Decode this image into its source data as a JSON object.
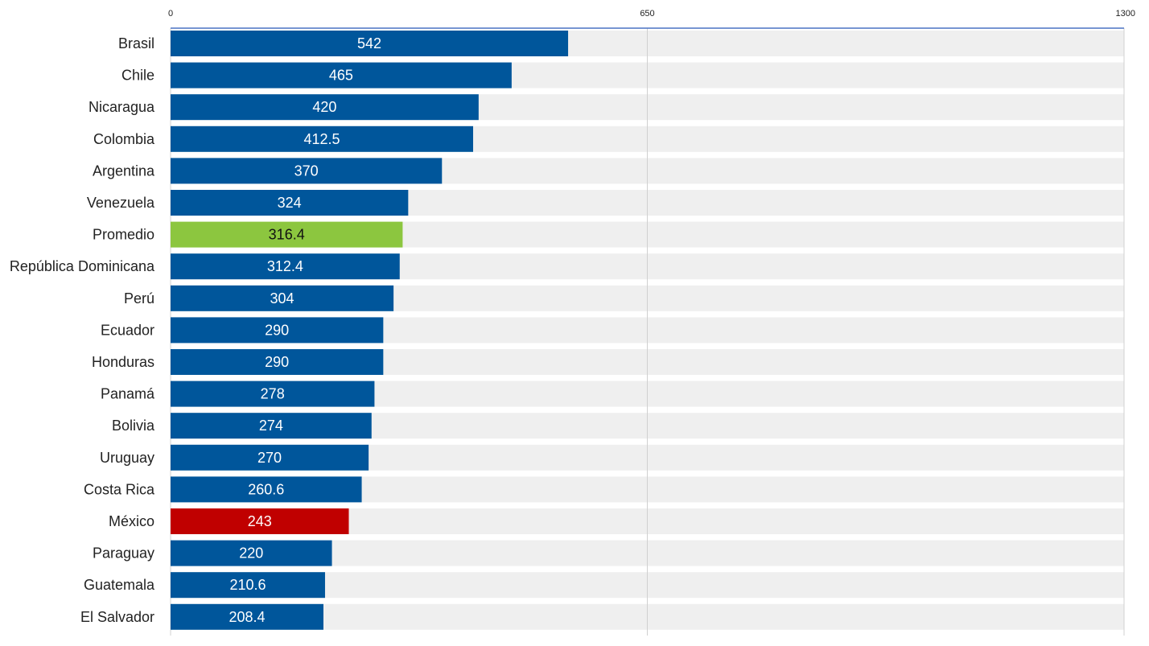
{
  "chart_data": {
    "type": "bar",
    "orientation": "horizontal",
    "title": "",
    "xlabel": "",
    "ylabel": "",
    "xlim": [
      0,
      1300
    ],
    "ticks": [
      0,
      650,
      1300
    ],
    "tick_labels": [
      "0",
      "650",
      "1300"
    ],
    "grid": true,
    "legend": "none",
    "categories": [
      "Brasil",
      "Chile",
      "Nicaragua",
      "Colombia",
      "Argentina",
      "Venezuela",
      "Promedio",
      "República Dominicana",
      "Perú",
      "Ecuador",
      "Honduras",
      "Panamá",
      "Bolivia",
      "Uruguay",
      "Costa Rica",
      "México",
      "Paraguay",
      "Guatemala",
      "El Salvador"
    ],
    "values": [
      542,
      465,
      420,
      412.5,
      370,
      324,
      316.4,
      312.4,
      304,
      290,
      290,
      278,
      274,
      270,
      260.6,
      243,
      220,
      210.6,
      208.4
    ],
    "value_labels": [
      "542",
      "465",
      "420",
      "412.5",
      "370",
      "324",
      "316.4",
      "312.4",
      "304",
      "290",
      "290",
      "278",
      "274",
      "270",
      "260.6",
      "243",
      "220",
      "210.6",
      "208.4"
    ],
    "highlights": {
      "Promedio": "#8cc63f",
      "México": "#c00000"
    },
    "colors": {
      "default_bar": "#00569b",
      "track": "#efefef",
      "axis_line": "#4a72c4",
      "grid": "#d0d0d0",
      "label_dark": "#111111",
      "label_light": "#ffffff"
    }
  }
}
